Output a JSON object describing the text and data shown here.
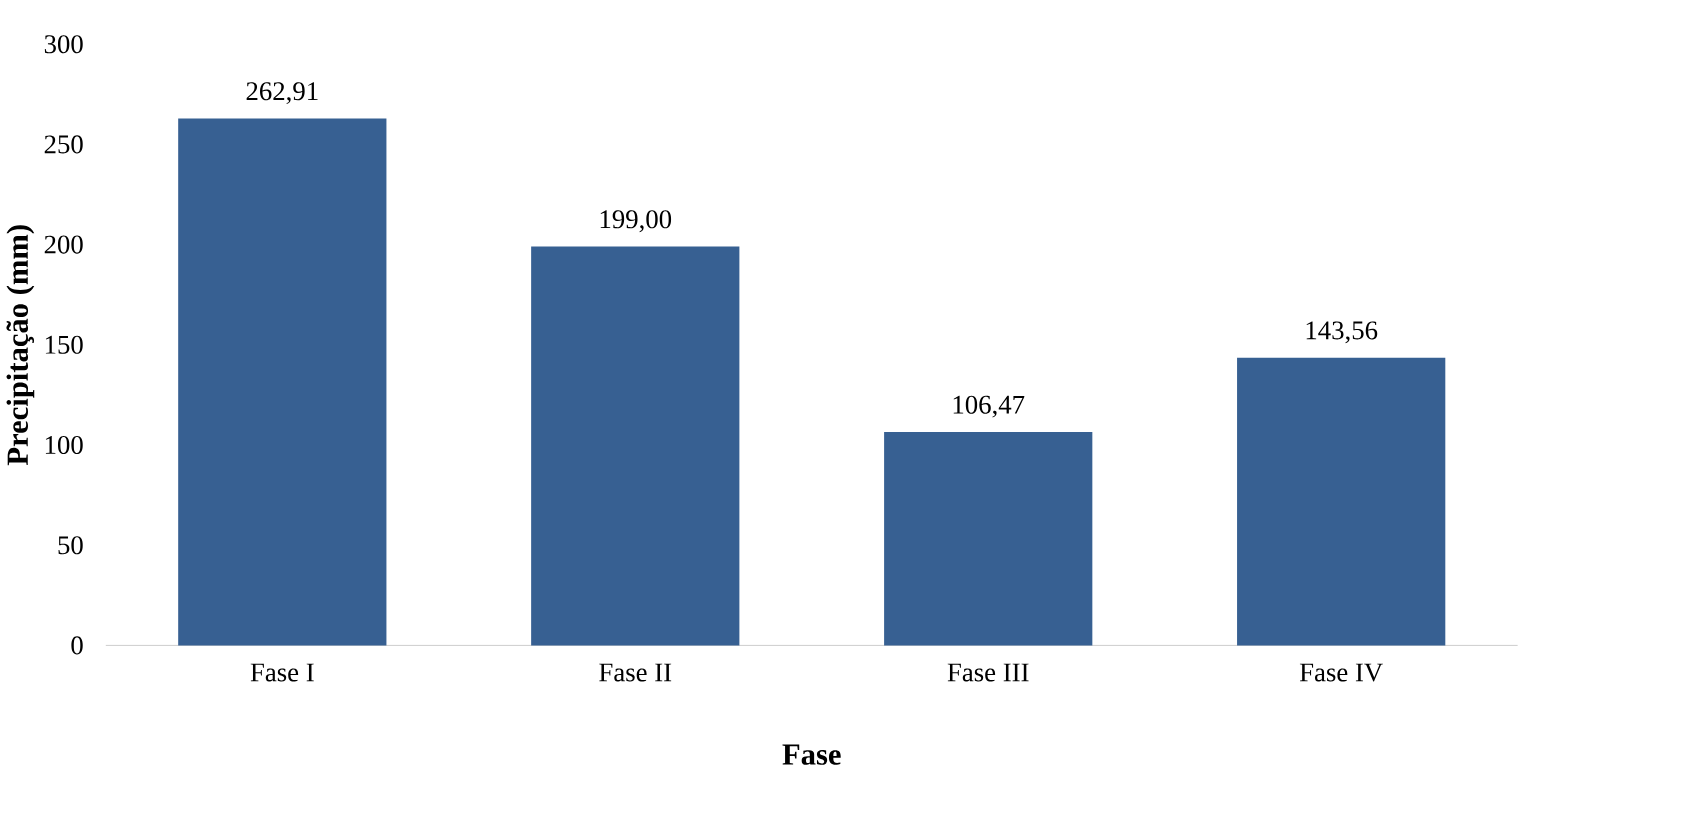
{
  "chart_data": {
    "type": "bar",
    "xlabel": "Fase",
    "ylabel": "Precipitação (mm)",
    "categories": [
      "Fase I",
      "Fase II",
      "Fase III",
      "Fase IV"
    ],
    "values": [
      262.91,
      199.0,
      106.47,
      143.56
    ],
    "value_labels": [
      "262,91",
      "199,00",
      "106,47",
      "143,56"
    ],
    "color": "#376092",
    "ylim": [
      0,
      300
    ],
    "yticks": [
      0,
      50,
      100,
      150,
      200,
      250,
      300
    ]
  }
}
